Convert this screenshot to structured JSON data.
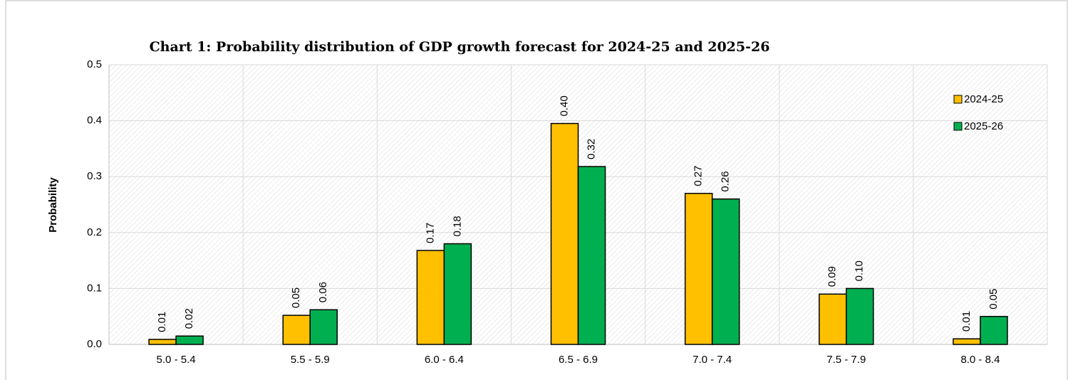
{
  "chart_data": {
    "type": "bar",
    "title": "Chart 1: Probability distribution of  GDP growth forecast for 2024-25 and 2025-26",
    "y_label": "Probability",
    "categories": [
      "5.0 - 5.4",
      "5.5 - 5.9",
      "6.0 - 6.4",
      "6.5 - 6.9",
      "7.0 - 7.4",
      "7.5 - 7.9",
      "8.0 - 8.4"
    ],
    "series": [
      {
        "name": "2024-25",
        "color": "#ffc000",
        "values": [
          0.009,
          0.052,
          0.168,
          0.395,
          0.27,
          0.09,
          0.01
        ],
        "value_labels": [
          "0.01",
          "0.05",
          "0.17",
          "0.40",
          "0.27",
          "0.09",
          "0.01"
        ]
      },
      {
        "name": "2025-26",
        "color": "#00b050",
        "values": [
          0.015,
          0.062,
          0.18,
          0.318,
          0.26,
          0.1,
          0.05
        ],
        "value_labels": [
          "0.02",
          "0.06",
          "0.18",
          "0.32",
          "0.26",
          "0.10",
          "0.05"
        ]
      }
    ],
    "ylim": [
      0,
      0.5
    ],
    "yticks": [
      {
        "value": 0,
        "label": "0.0"
      },
      0.1,
      0.2,
      0.3,
      0.4,
      0.5
    ],
    "grid": true,
    "legend": "upper right"
  }
}
